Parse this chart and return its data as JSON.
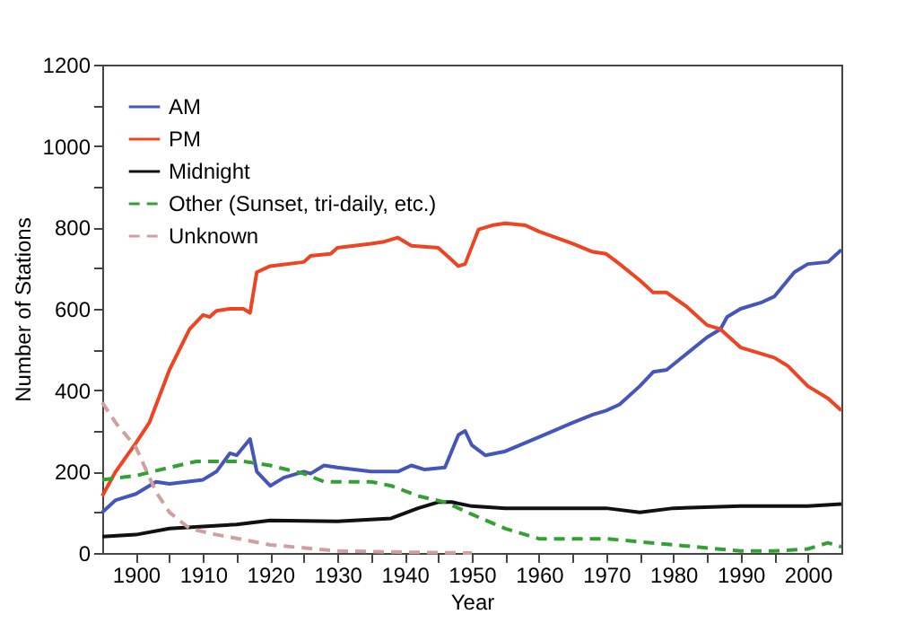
{
  "chart_data": {
    "type": "line",
    "xlabel": "Year",
    "ylabel": "Number of Stations",
    "xlim": [
      1895,
      2005
    ],
    "ylim": [
      0,
      1200
    ],
    "xticks": [
      1900,
      {
        "value": 1905,
        "label": null
      },
      1910,
      {
        "value": 1915,
        "label": null
      },
      1920,
      {
        "value": 1925,
        "label": null
      },
      1930,
      {
        "value": 1935,
        "label": null
      },
      1940,
      {
        "value": 1945,
        "label": null
      },
      1950,
      {
        "value": 1955,
        "label": null
      },
      1960,
      {
        "value": 1965,
        "label": null
      },
      1970,
      {
        "value": 1975,
        "label": null
      },
      1980,
      {
        "value": 1985,
        "label": null
      },
      1990,
      {
        "value": 1995,
        "label": null
      },
      2000
    ],
    "yticks": [
      0,
      {
        "value": 100,
        "label": null
      },
      200,
      {
        "value": 300,
        "label": null
      },
      400,
      {
        "value": 500,
        "label": null
      },
      600,
      {
        "value": 700,
        "label": null
      },
      800,
      {
        "value": 900,
        "label": null
      },
      1000,
      {
        "value": 1100,
        "label": null
      },
      1200
    ],
    "grid": false,
    "legend": "top left",
    "series": [
      {
        "name": "AM",
        "color": "#4455bb",
        "line_style": "solid",
        "x": [
          1895,
          1897,
          1900,
          1903,
          1905,
          1910,
          1912,
          1914,
          1915,
          1917,
          1918,
          1920,
          1922,
          1925,
          1926,
          1928,
          1930,
          1935,
          1939,
          1941,
          1943,
          1946,
          1948,
          1949,
          1950,
          1952,
          1955,
          1960,
          1965,
          1968,
          1970,
          1972,
          1975,
          1977,
          1979,
          1985,
          1987,
          1988,
          1990,
          1993,
          1995,
          1998,
          2000,
          2003,
          2005
        ],
        "values": [
          100,
          130,
          145,
          175,
          170,
          180,
          200,
          245,
          240,
          280,
          200,
          165,
          185,
          200,
          195,
          215,
          210,
          200,
          200,
          215,
          205,
          210,
          290,
          300,
          265,
          240,
          250,
          285,
          320,
          340,
          350,
          365,
          410,
          445,
          450,
          530,
          550,
          580,
          600,
          615,
          630,
          690,
          710,
          715,
          745
        ]
      },
      {
        "name": "PM",
        "color": "#ee4422",
        "line_style": "solid",
        "x": [
          1895,
          1897,
          1900,
          1902,
          1905,
          1908,
          1910,
          1911,
          1912,
          1914,
          1916,
          1917,
          1918,
          1920,
          1925,
          1926,
          1929,
          1930,
          1935,
          1937,
          1939,
          1941,
          1945,
          1947,
          1948,
          1949,
          1951,
          1953,
          1955,
          1958,
          1960,
          1965,
          1968,
          1970,
          1972,
          1975,
          1977,
          1979,
          1982,
          1985,
          1987,
          1990,
          1993,
          1995,
          1997,
          2000,
          2003,
          2005
        ],
        "values": [
          140,
          200,
          270,
          320,
          450,
          550,
          585,
          580,
          595,
          600,
          600,
          590,
          690,
          705,
          715,
          730,
          735,
          750,
          760,
          765,
          775,
          755,
          750,
          720,
          705,
          710,
          795,
          805,
          810,
          805,
          790,
          760,
          740,
          735,
          710,
          670,
          640,
          640,
          605,
          560,
          550,
          505,
          490,
          480,
          460,
          410,
          380,
          350
        ]
      },
      {
        "name": "Midnight",
        "color": "#111111",
        "line_style": "solid",
        "x": [
          1895,
          1900,
          1905,
          1910,
          1915,
          1920,
          1930,
          1938,
          1942,
          1945,
          1947,
          1950,
          1955,
          1970,
          1975,
          1980,
          1990,
          2000,
          2005
        ],
        "values": [
          40,
          45,
          60,
          65,
          70,
          80,
          78,
          85,
          110,
          125,
          125,
          115,
          110,
          110,
          100,
          110,
          115,
          115,
          120
        ]
      },
      {
        "name": "Other (Sunset, tri-daily, etc.)",
        "color": "#33a033",
        "line_style": "dashed",
        "x": [
          1895,
          1900,
          1905,
          1909,
          1912,
          1916,
          1920,
          1925,
          1928,
          1935,
          1938,
          1942,
          1946,
          1950,
          1955,
          1960,
          1970,
          1980,
          1990,
          1995,
          2000,
          2003,
          2005
        ],
        "values": [
          180,
          190,
          210,
          225,
          225,
          225,
          215,
          195,
          175,
          175,
          165,
          140,
          125,
          95,
          60,
          35,
          35,
          20,
          5,
          5,
          10,
          25,
          15
        ]
      },
      {
        "name": "Unknown",
        "color": "#d0a0a0",
        "line_style": "dashed",
        "x": [
          1895,
          1897,
          1900,
          1903,
          1905,
          1908,
          1912,
          1920,
          1930,
          1940,
          1950
        ],
        "values": [
          370,
          320,
          260,
          150,
          100,
          60,
          45,
          20,
          5,
          2,
          0
        ]
      }
    ]
  }
}
